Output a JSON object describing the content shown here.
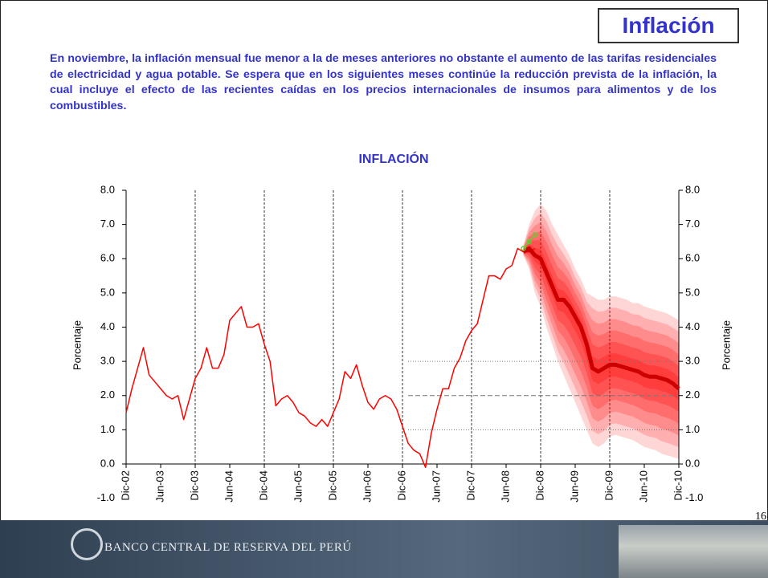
{
  "slide_title": "Inflación",
  "intro": "En noviembre, la inflación mensual fue menor a la de meses anteriores no obstante el aumento de las tarifas residenciales de electricidad y agua potable. Se espera que en los siguientes meses continúe la reducción prevista de la inflación, la cual incluye el efecto de las recientes caídas en los precios internacionales de insumos para alimentos y de los combustibles.",
  "page_number": "16",
  "footer": "BANCO CENTRAL DE RESERVA DEL PERÚ",
  "chart_data": {
    "type": "fan-line",
    "title": "INFLACIÓN",
    "ylabel": "Porcentaje",
    "y2label": "Porcentaje",
    "categories": [
      "Dic-02",
      null,
      null,
      null,
      null,
      null,
      "Jun-03",
      null,
      null,
      null,
      null,
      null,
      "Dic-03",
      null,
      null,
      null,
      null,
      null,
      "Jun-04",
      null,
      null,
      null,
      null,
      null,
      "Dic-04",
      null,
      null,
      null,
      null,
      null,
      "Jun-05",
      null,
      null,
      null,
      null,
      null,
      "Dic-05",
      null,
      null,
      null,
      null,
      null,
      "Jun-06",
      null,
      null,
      null,
      null,
      null,
      "Dic-06",
      null,
      null,
      null,
      null,
      null,
      "Jun-07",
      null,
      null,
      null,
      null,
      null,
      "Dic-07",
      null,
      null,
      null,
      null,
      null,
      "Jun-08",
      null,
      null,
      null,
      null,
      null,
      "Dic-08",
      null,
      null,
      null,
      null,
      null,
      "Jun-09",
      null,
      null,
      null,
      null,
      null,
      "Dic-09",
      null,
      null,
      null,
      null,
      null,
      "Jun-10",
      null,
      null,
      null,
      null,
      null,
      "Dic-10"
    ],
    "series": [
      {
        "color": "#ff0000",
        "width": 1.5,
        "values": [
          1.5,
          2.2,
          2.8,
          3.4,
          2.6,
          2.4,
          2.2,
          2.0,
          1.9,
          2.0,
          1.3,
          1.9,
          2.5,
          2.8,
          3.4,
          2.8,
          2.8,
          3.2,
          4.2,
          4.4,
          4.6,
          4.0,
          4.0,
          4.1,
          3.5,
          3.0,
          1.7,
          1.9,
          2.0,
          1.8,
          1.5,
          1.4,
          1.2,
          1.1,
          1.3,
          1.1,
          1.5,
          1.9,
          2.7,
          2.5,
          2.9,
          2.3,
          1.8,
          1.6,
          1.9,
          2.0,
          1.9,
          1.6,
          1.1,
          0.6,
          0.4,
          0.3,
          -0.1,
          0.9,
          1.6,
          2.2,
          2.2,
          2.8,
          3.1,
          3.6,
          3.9,
          4.1,
          4.8,
          5.5,
          5.5,
          5.4,
          5.7,
          5.8,
          6.3,
          6.2,
          6.2,
          6.3,
          null,
          null,
          null,
          null,
          null,
          null,
          null,
          null,
          null,
          null,
          null,
          null,
          null,
          null,
          null,
          null,
          null,
          null,
          null,
          null,
          null,
          null,
          null,
          null,
          null
        ]
      },
      {
        "color": "#cc0000",
        "width": 5,
        "values": [
          null,
          null,
          null,
          null,
          null,
          null,
          null,
          null,
          null,
          null,
          null,
          null,
          null,
          null,
          null,
          null,
          null,
          null,
          null,
          null,
          null,
          null,
          null,
          null,
          null,
          null,
          null,
          null,
          null,
          null,
          null,
          null,
          null,
          null,
          null,
          null,
          null,
          null,
          null,
          null,
          null,
          null,
          null,
          null,
          null,
          null,
          null,
          null,
          null,
          null,
          null,
          null,
          null,
          null,
          null,
          null,
          null,
          null,
          null,
          null,
          null,
          null,
          null,
          null,
          null,
          null,
          null,
          null,
          null,
          6.2,
          6.3,
          6.1,
          6.0,
          5.6,
          5.2,
          4.8,
          4.8,
          4.6,
          4.3,
          4.0,
          3.5,
          2.8,
          2.7,
          2.8,
          2.9,
          2.9,
          2.85,
          2.8,
          2.75,
          2.7,
          2.6,
          2.55,
          2.55,
          2.5,
          2.45,
          2.35,
          2.2
        ]
      },
      {
        "color": "#66cc33",
        "width": 1.5,
        "markers": true,
        "values": [
          null,
          null,
          null,
          null,
          null,
          null,
          null,
          null,
          null,
          null,
          null,
          null,
          null,
          null,
          null,
          null,
          null,
          null,
          null,
          null,
          null,
          null,
          null,
          null,
          null,
          null,
          null,
          null,
          null,
          null,
          null,
          null,
          null,
          null,
          null,
          null,
          null,
          null,
          null,
          null,
          null,
          null,
          null,
          null,
          null,
          null,
          null,
          null,
          null,
          null,
          null,
          null,
          null,
          null,
          null,
          null,
          null,
          null,
          null,
          null,
          null,
          null,
          null,
          null,
          null,
          null,
          null,
          null,
          null,
          6.3,
          6.5,
          6.7,
          null,
          null,
          null,
          null,
          null,
          null,
          null,
          null,
          null,
          null,
          null,
          null,
          null,
          null,
          null,
          null,
          null,
          null,
          null,
          null,
          null,
          null,
          null,
          null,
          null
        ]
      }
    ],
    "fan_color": "#ff0000",
    "fan_upper": [
      null,
      null,
      null,
      null,
      null,
      null,
      null,
      null,
      null,
      null,
      null,
      null,
      null,
      null,
      null,
      null,
      null,
      null,
      null,
      null,
      null,
      null,
      null,
      null,
      null,
      null,
      null,
      null,
      null,
      null,
      null,
      null,
      null,
      null,
      null,
      null,
      null,
      null,
      null,
      null,
      null,
      null,
      null,
      null,
      null,
      null,
      null,
      null,
      null,
      null,
      null,
      null,
      null,
      null,
      null,
      null,
      null,
      null,
      null,
      null,
      null,
      null,
      null,
      null,
      null,
      null,
      null,
      null,
      null,
      6.4,
      7.0,
      7.4,
      7.6,
      7.4,
      7.0,
      6.7,
      6.4,
      6.1,
      5.7,
      5.4,
      5.0,
      4.9,
      4.8,
      4.8,
      4.9,
      4.9,
      4.85,
      4.8,
      4.7,
      4.7,
      4.6,
      4.55,
      4.5,
      4.45,
      4.4,
      4.3,
      4.2
    ],
    "fan_lower": [
      null,
      null,
      null,
      null,
      null,
      null,
      null,
      null,
      null,
      null,
      null,
      null,
      null,
      null,
      null,
      null,
      null,
      null,
      null,
      null,
      null,
      null,
      null,
      null,
      null,
      null,
      null,
      null,
      null,
      null,
      null,
      null,
      null,
      null,
      null,
      null,
      null,
      null,
      null,
      null,
      null,
      null,
      null,
      null,
      null,
      null,
      null,
      null,
      null,
      null,
      null,
      null,
      null,
      null,
      null,
      null,
      null,
      null,
      null,
      null,
      null,
      null,
      null,
      null,
      null,
      null,
      null,
      null,
      null,
      6.1,
      5.7,
      5.0,
      4.6,
      4.0,
      3.5,
      3.0,
      2.6,
      2.2,
      1.8,
      1.4,
      1.0,
      0.6,
      0.5,
      0.6,
      0.8,
      0.85,
      0.8,
      0.75,
      0.7,
      0.6,
      0.5,
      0.45,
      0.4,
      0.3,
      0.25,
      0.2,
      0.15
    ],
    "hlines": [
      {
        "value": 3,
        "style": "dotted"
      },
      {
        "value": 2,
        "style": "dashed"
      },
      {
        "value": 1,
        "style": "dotted"
      }
    ],
    "ylim": [
      -1,
      8
    ],
    "yticks": [
      {
        "value": -1,
        "label": "-1.0"
      },
      {
        "value": 0,
        "label": "0.0"
      },
      {
        "value": 1,
        "label": "1.0"
      },
      {
        "value": 2,
        "label": "2.0"
      },
      {
        "value": 3,
        "label": "3.0"
      },
      {
        "value": 4,
        "label": "4.0"
      },
      {
        "value": 5,
        "label": "5.0"
      },
      {
        "value": 6,
        "label": "6.0"
      },
      {
        "value": 7,
        "label": "7.0"
      },
      {
        "value": 8,
        "label": "8.0"
      }
    ],
    "y2lim": [
      -1,
      8
    ],
    "y2ticks": [
      {
        "value": -1,
        "label": "-1.0"
      },
      {
        "value": 0,
        "label": "0.0"
      },
      {
        "value": 1,
        "label": "1.0"
      },
      {
        "value": 2,
        "label": "2.0"
      },
      {
        "value": 3,
        "label": "3.0"
      },
      {
        "value": 4,
        "label": "4.0"
      },
      {
        "value": 5,
        "label": "5.0"
      },
      {
        "value": 6,
        "label": "6.0"
      },
      {
        "value": 7,
        "label": "7.0"
      },
      {
        "value": 8,
        "label": "8.0"
      }
    ]
  }
}
